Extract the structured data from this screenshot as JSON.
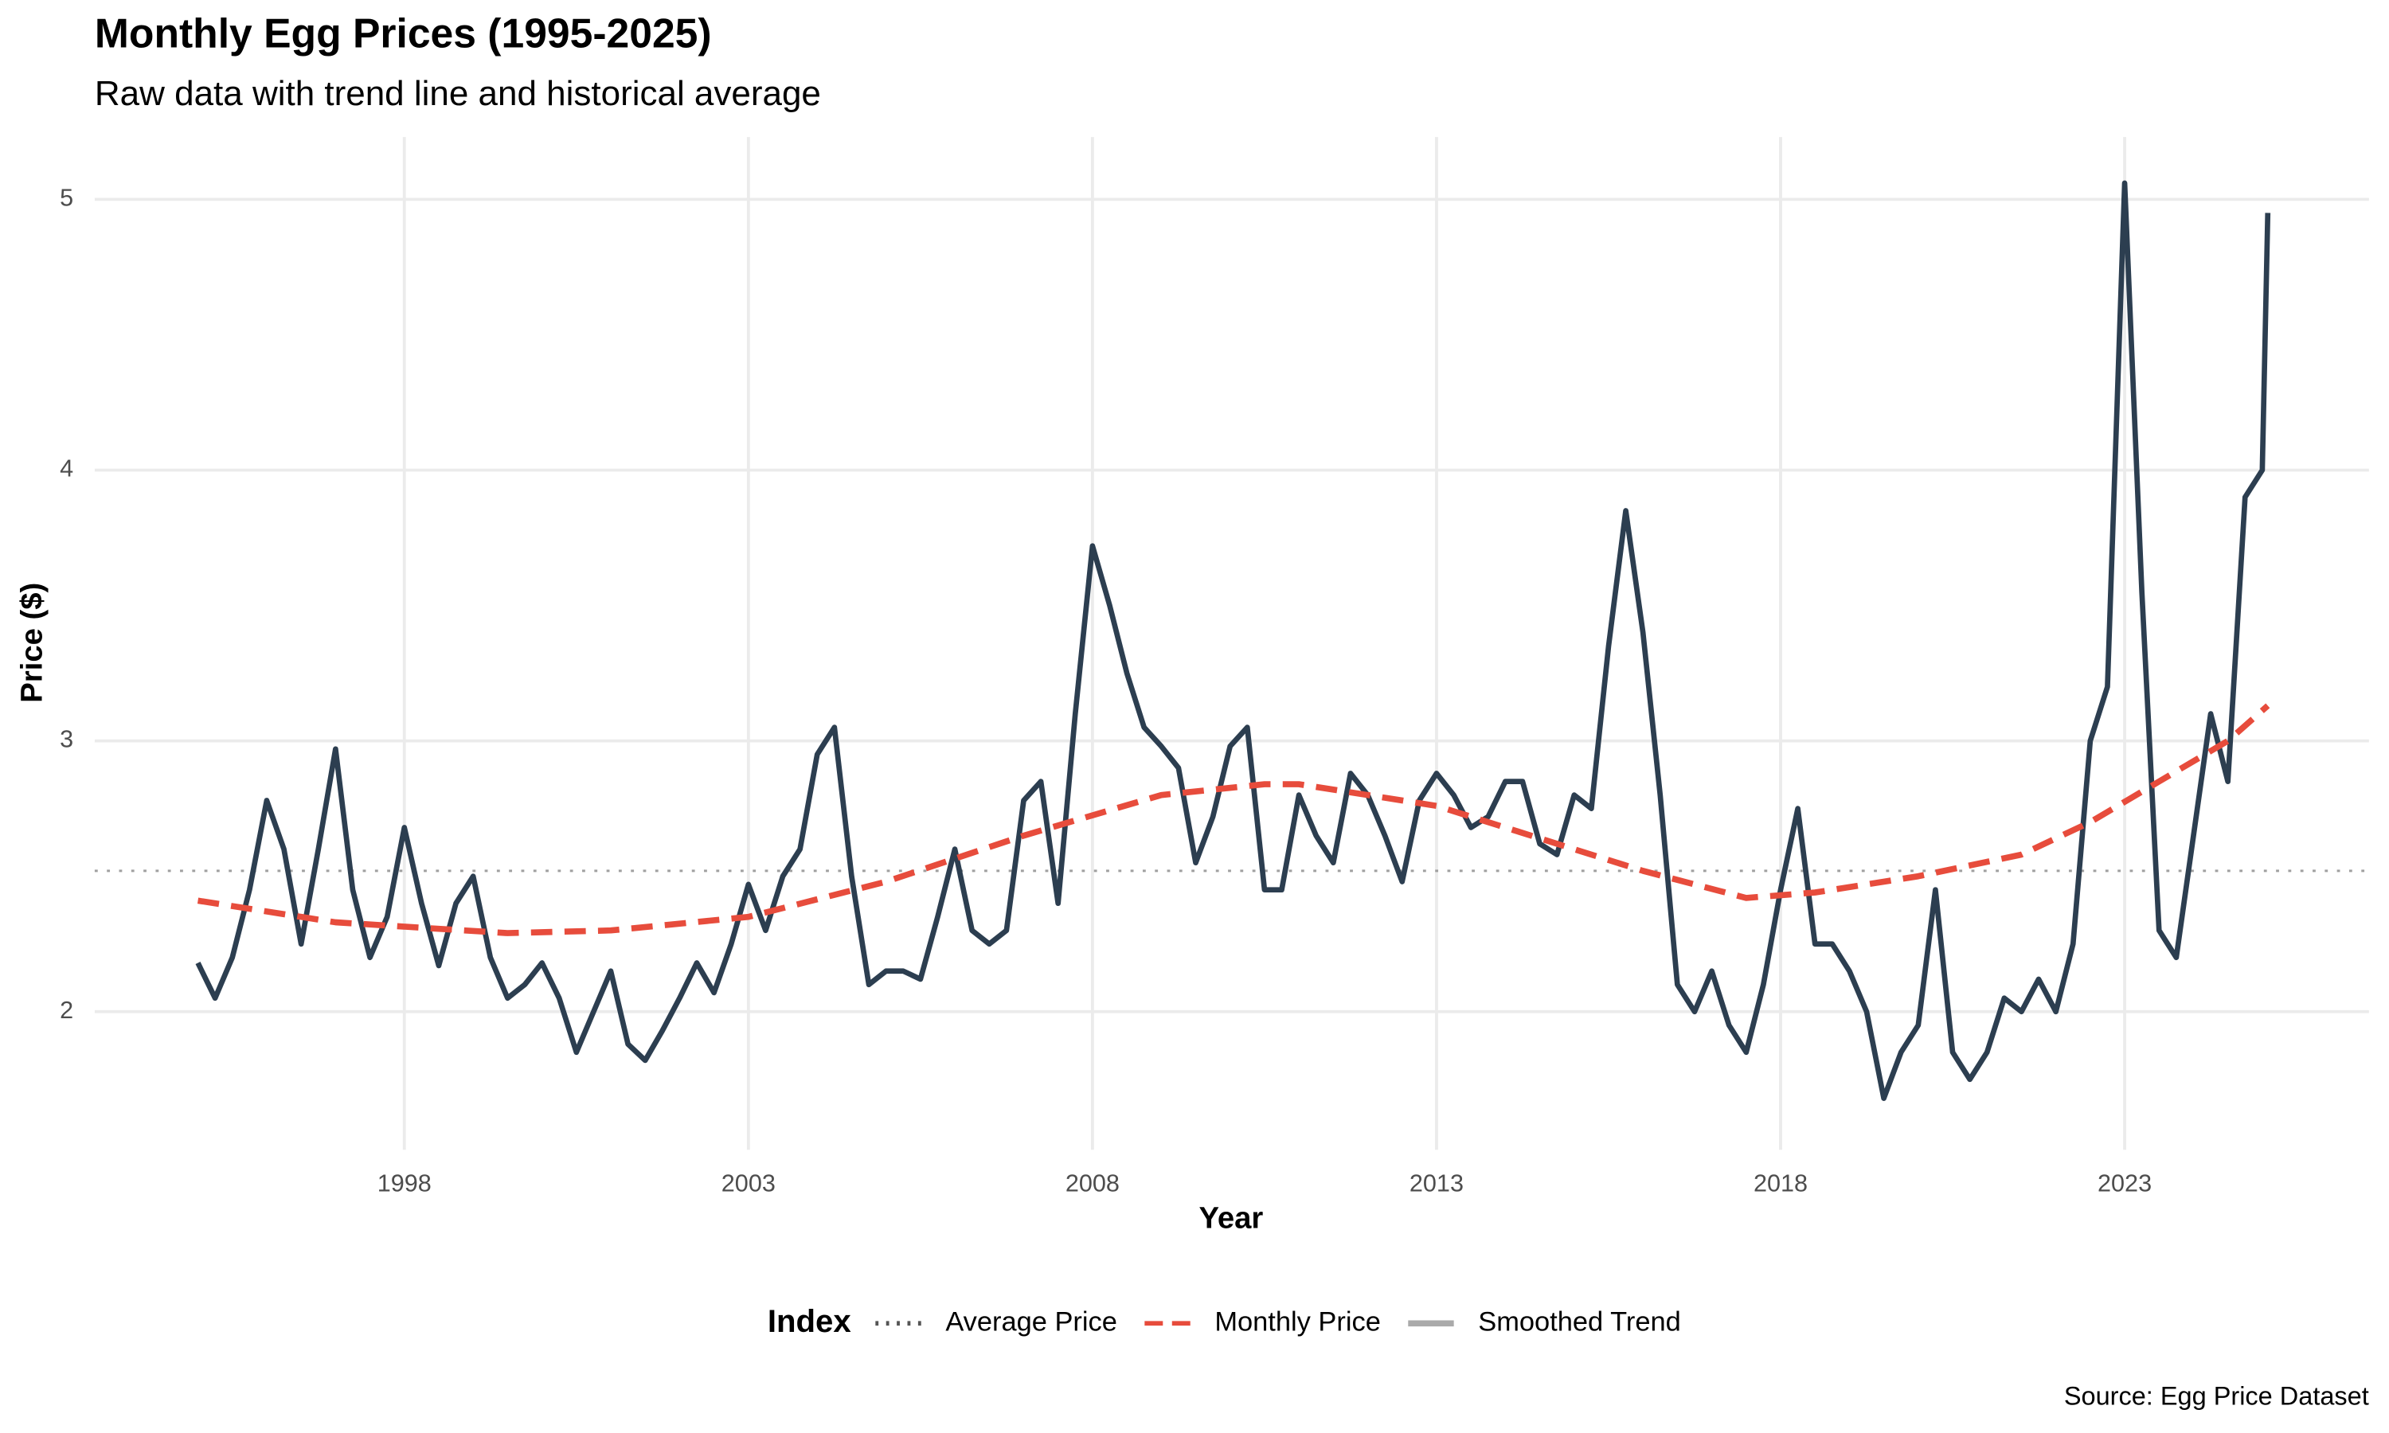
{
  "chart_data": {
    "type": "line",
    "title": "Monthly Egg Prices (1995-2025)",
    "subtitle": "Raw data with trend line and historical average",
    "x_label": "Year",
    "y_label": "Price ($)",
    "caption": "Source: Egg Price Dataset",
    "xlim": [
      1993.5,
      2026.55
    ],
    "ylim": [
      1.49,
      5.23
    ],
    "xticks": [
      1998,
      2003,
      2008,
      2013,
      2018,
      2023
    ],
    "yticks": [
      2,
      3,
      4,
      5
    ],
    "grid": true,
    "x": [
      1995.0,
      1995.25,
      1995.5,
      1995.75,
      1996.0,
      1996.25,
      1996.5,
      1996.75,
      1997.0,
      1997.25,
      1997.5,
      1997.75,
      1998.0,
      1998.25,
      1998.5,
      1998.75,
      1999.0,
      1999.25,
      1999.5,
      1999.75,
      2000.0,
      2000.25,
      2000.5,
      2000.75,
      2001.0,
      2001.25,
      2001.5,
      2001.75,
      2002.0,
      2002.25,
      2002.5,
      2002.75,
      2003.0,
      2003.25,
      2003.5,
      2003.75,
      2004.0,
      2004.25,
      2004.5,
      2004.75,
      2005.0,
      2005.25,
      2005.5,
      2005.75,
      2006.0,
      2006.25,
      2006.5,
      2006.75,
      2007.0,
      2007.25,
      2007.5,
      2007.75,
      2008.0,
      2008.25,
      2008.5,
      2008.75,
      2009.0,
      2009.25,
      2009.5,
      2009.75,
      2010.0,
      2010.25,
      2010.5,
      2010.75,
      2011.0,
      2011.25,
      2011.5,
      2011.75,
      2012.0,
      2012.25,
      2012.5,
      2012.75,
      2013.0,
      2013.25,
      2013.5,
      2013.75,
      2014.0,
      2014.25,
      2014.5,
      2014.75,
      2015.0,
      2015.25,
      2015.5,
      2015.75,
      2016.0,
      2016.25,
      2016.5,
      2016.75,
      2017.0,
      2017.25,
      2017.5,
      2017.75,
      2018.0,
      2018.25,
      2018.5,
      2018.75,
      2019.0,
      2019.25,
      2019.5,
      2019.75,
      2020.0,
      2020.25,
      2020.5,
      2020.75,
      2021.0,
      2021.25,
      2021.5,
      2021.75,
      2022.0,
      2022.25,
      2022.5,
      2022.75,
      2023.0,
      2023.25,
      2023.5,
      2023.75,
      2024.0,
      2024.25,
      2024.5,
      2024.75,
      2025.0,
      2025.08
    ],
    "series": [
      {
        "color": "#2c3e50",
        "style": "solid",
        "values": [
          2.18,
          2.05,
          2.2,
          2.45,
          2.78,
          2.6,
          2.25,
          2.6,
          2.97,
          2.45,
          2.2,
          2.35,
          2.68,
          2.4,
          2.17,
          2.4,
          2.5,
          2.2,
          2.05,
          2.1,
          2.18,
          2.05,
          1.85,
          2.0,
          2.15,
          1.88,
          1.82,
          1.93,
          2.05,
          2.18,
          2.07,
          2.25,
          2.47,
          2.3,
          2.5,
          2.6,
          2.95,
          3.05,
          2.5,
          2.1,
          2.15,
          2.15,
          2.12,
          2.35,
          2.6,
          2.3,
          2.25,
          2.3,
          2.78,
          2.85,
          2.4,
          3.1,
          3.72,
          3.5,
          3.25,
          3.05,
          2.98,
          2.9,
          2.55,
          2.72,
          2.98,
          3.05,
          2.45,
          2.45,
          2.8,
          2.65,
          2.55,
          2.88,
          2.8,
          2.65,
          2.48,
          2.78,
          2.88,
          2.8,
          2.68,
          2.72,
          2.85,
          2.85,
          2.62,
          2.58,
          2.8,
          2.75,
          3.35,
          3.85,
          3.4,
          2.8,
          2.1,
          2.0,
          2.15,
          1.95,
          1.85,
          2.1,
          2.45,
          2.75,
          2.25,
          2.25,
          2.15,
          2.0,
          1.68,
          1.85,
          1.95,
          2.45,
          1.85,
          1.75,
          1.85,
          2.05,
          2.0,
          2.12,
          2.0,
          2.25,
          3.0,
          3.2,
          5.06,
          3.55,
          2.3,
          2.2,
          2.65,
          3.1,
          2.85,
          3.9,
          4.0,
          4.95
        ]
      },
      {
        "color": "#e74c3c",
        "style": "dashed",
        "x": [
          1995.0,
          1997.0,
          1999.5,
          2001.0,
          2003.0,
          2005.0,
          2007.0,
          2009.0,
          2010.5,
          2011.0,
          2013.0,
          2015.0,
          2016.0,
          2017.5,
          2018.5,
          2020.0,
          2021.5,
          2022.5,
          2023.5,
          2024.5,
          2025.08
        ],
        "values": [
          2.41,
          2.33,
          2.29,
          2.3,
          2.35,
          2.48,
          2.65,
          2.8,
          2.84,
          2.84,
          2.76,
          2.6,
          2.52,
          2.42,
          2.44,
          2.5,
          2.58,
          2.7,
          2.85,
          3.0,
          3.13
        ]
      }
    ],
    "reference_line": {
      "value": 2.52,
      "color": "#a0a0a0",
      "style": "dotted"
    },
    "legend": {
      "title": "Index",
      "position": "bottom",
      "entries": [
        {
          "label": "Average Price",
          "color": "#555555",
          "style": "dotted"
        },
        {
          "label": "Monthly Price",
          "color": "#e74c3c",
          "style": "dashed"
        },
        {
          "label": "Smoothed Trend",
          "color": "#aaaaaa",
          "style": "solid"
        }
      ]
    }
  }
}
